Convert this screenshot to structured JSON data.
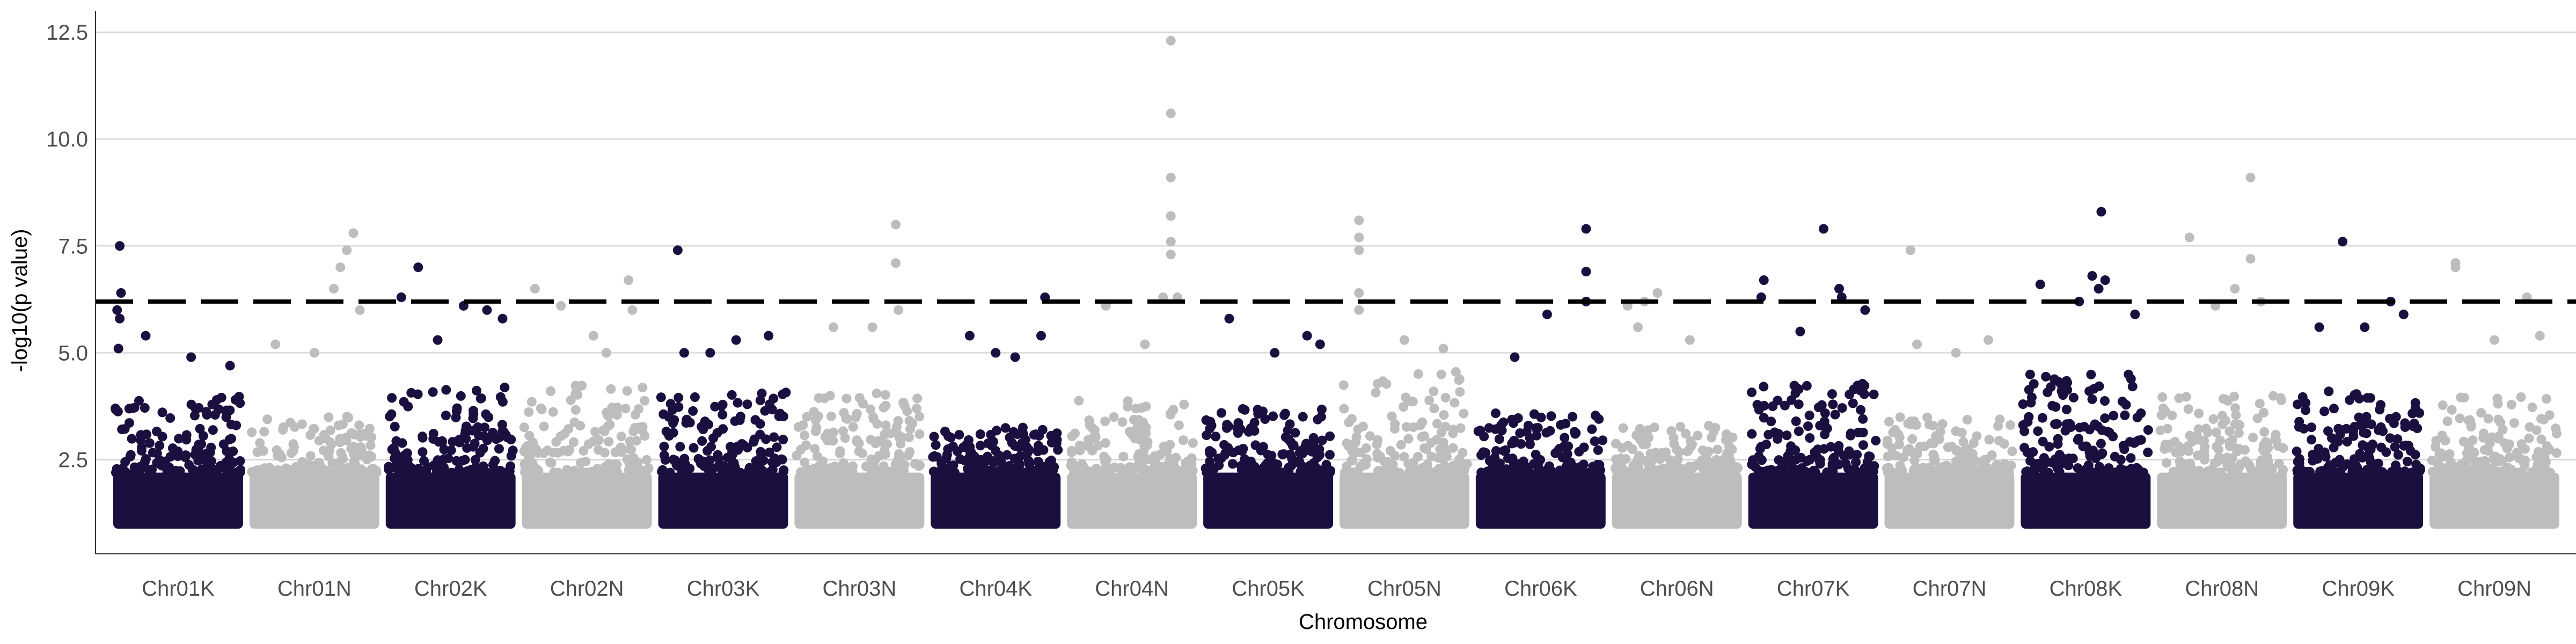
{
  "chart_data": {
    "type": "scatter",
    "title": "",
    "xlabel": "Chromosome",
    "ylabel": "-log10(p value)",
    "ylim": [
      0.3,
      13.0
    ],
    "yticks": [
      "2.5",
      "5.0",
      "7.5",
      "10.0",
      "12.5"
    ],
    "ytick_values": [
      2.5,
      5.0,
      7.5,
      10.0,
      12.5
    ],
    "grid": "horizontal",
    "threshold": 6.2,
    "colors": {
      "dark": "#1b0f40",
      "light": "#bdbdbd",
      "grid": "#cccccc",
      "threshold": "#000000"
    },
    "categories": [
      "Chr01K",
      "Chr01N",
      "Chr02K",
      "Chr02N",
      "Chr03K",
      "Chr03N",
      "Chr04K",
      "Chr04N",
      "Chr05K",
      "Chr05N",
      "Chr06K",
      "Chr06N",
      "Chr07K",
      "Chr07N",
      "Chr08K",
      "Chr08N",
      "Chr09K",
      "Chr09N"
    ],
    "series": [
      {
        "color": "dark",
        "bulk_top": 4.0,
        "outliers": [
          [
            0.05,
            7.5
          ],
          [
            0.06,
            6.4
          ],
          [
            0.03,
            6.0
          ],
          [
            0.05,
            5.8
          ],
          [
            0.04,
            5.1
          ],
          [
            0.25,
            5.4
          ],
          [
            0.6,
            4.9
          ],
          [
            0.9,
            4.7
          ]
        ]
      },
      {
        "color": "light",
        "bulk_top": 3.6,
        "outliers": [
          [
            0.8,
            7.8
          ],
          [
            0.75,
            7.4
          ],
          [
            0.7,
            7.0
          ],
          [
            0.65,
            6.5
          ],
          [
            0.85,
            6.0
          ],
          [
            0.5,
            5.0
          ],
          [
            0.2,
            5.2
          ]
        ]
      },
      {
        "color": "dark",
        "bulk_top": 4.2,
        "outliers": [
          [
            0.25,
            7.0
          ],
          [
            0.12,
            6.3
          ],
          [
            0.6,
            6.1
          ],
          [
            0.78,
            6.0
          ],
          [
            0.9,
            5.8
          ],
          [
            0.4,
            5.3
          ]
        ]
      },
      {
        "color": "light",
        "bulk_top": 4.3,
        "outliers": [
          [
            0.1,
            6.5
          ],
          [
            0.3,
            6.1
          ],
          [
            0.82,
            6.7
          ],
          [
            0.85,
            6.0
          ],
          [
            0.55,
            5.4
          ],
          [
            0.65,
            5.0
          ]
        ]
      },
      {
        "color": "dark",
        "bulk_top": 4.1,
        "outliers": [
          [
            0.15,
            7.4
          ],
          [
            0.85,
            5.4
          ],
          [
            0.6,
            5.3
          ],
          [
            0.4,
            5.0
          ],
          [
            0.2,
            5.0
          ]
        ]
      },
      {
        "color": "light",
        "bulk_top": 4.1,
        "outliers": [
          [
            0.78,
            8.0
          ],
          [
            0.78,
            7.1
          ],
          [
            0.8,
            6.0
          ],
          [
            0.3,
            5.6
          ],
          [
            0.6,
            5.6
          ]
        ]
      },
      {
        "color": "dark",
        "bulk_top": 3.3,
        "outliers": [
          [
            0.88,
            6.3
          ],
          [
            0.85,
            5.4
          ],
          [
            0.3,
            5.4
          ],
          [
            0.5,
            5.0
          ],
          [
            0.65,
            4.9
          ]
        ]
      },
      {
        "color": "light",
        "bulk_top": 3.9,
        "outliers": [
          [
            0.8,
            12.3
          ],
          [
            0.8,
            10.6
          ],
          [
            0.8,
            9.1
          ],
          [
            0.8,
            8.2
          ],
          [
            0.8,
            7.6
          ],
          [
            0.8,
            7.3
          ],
          [
            0.74,
            6.3
          ],
          [
            0.85,
            6.3
          ],
          [
            0.3,
            6.1
          ],
          [
            0.6,
            5.2
          ]
        ]
      },
      {
        "color": "dark",
        "bulk_top": 3.7,
        "outliers": [
          [
            0.2,
            5.8
          ],
          [
            0.8,
            5.4
          ],
          [
            0.55,
            5.0
          ],
          [
            0.9,
            5.2
          ]
        ]
      },
      {
        "color": "light",
        "bulk_top": 4.6,
        "outliers": [
          [
            0.15,
            8.1
          ],
          [
            0.15,
            7.7
          ],
          [
            0.15,
            7.4
          ],
          [
            0.15,
            6.4
          ],
          [
            0.15,
            6.0
          ],
          [
            0.5,
            5.3
          ],
          [
            0.8,
            5.1
          ]
        ]
      },
      {
        "color": "dark",
        "bulk_top": 3.6,
        "outliers": [
          [
            0.85,
            7.9
          ],
          [
            0.85,
            6.9
          ],
          [
            0.85,
            6.2
          ],
          [
            0.55,
            5.9
          ],
          [
            0.3,
            4.9
          ]
        ]
      },
      {
        "color": "light",
        "bulk_top": 3.3,
        "outliers": [
          [
            0.12,
            6.1
          ],
          [
            0.25,
            6.2
          ],
          [
            0.35,
            6.4
          ],
          [
            0.6,
            5.3
          ],
          [
            0.2,
            5.6
          ]
        ]
      },
      {
        "color": "dark",
        "bulk_top": 4.3,
        "outliers": [
          [
            0.12,
            6.7
          ],
          [
            0.1,
            6.3
          ],
          [
            0.7,
            6.5
          ],
          [
            0.72,
            6.3
          ],
          [
            0.58,
            7.9
          ],
          [
            0.9,
            6.0
          ],
          [
            0.4,
            5.5
          ]
        ]
      },
      {
        "color": "light",
        "bulk_top": 3.5,
        "outliers": [
          [
            0.2,
            7.4
          ],
          [
            0.25,
            5.2
          ],
          [
            0.55,
            5.0
          ],
          [
            0.8,
            5.3
          ]
        ]
      },
      {
        "color": "dark",
        "bulk_top": 4.5,
        "outliers": [
          [
            0.62,
            8.3
          ],
          [
            0.55,
            6.8
          ],
          [
            0.65,
            6.7
          ],
          [
            0.6,
            6.5
          ],
          [
            0.15,
            6.6
          ],
          [
            0.88,
            5.9
          ],
          [
            0.45,
            6.2
          ]
        ]
      },
      {
        "color": "light",
        "bulk_top": 4.0,
        "outliers": [
          [
            0.25,
            7.7
          ],
          [
            0.72,
            9.1
          ],
          [
            0.72,
            7.2
          ],
          [
            0.6,
            6.5
          ],
          [
            0.45,
            6.1
          ],
          [
            0.8,
            6.2
          ]
        ]
      },
      {
        "color": "dark",
        "bulk_top": 4.1,
        "outliers": [
          [
            0.38,
            7.6
          ],
          [
            0.75,
            6.2
          ],
          [
            0.2,
            5.6
          ],
          [
            0.55,
            5.6
          ],
          [
            0.85,
            5.9
          ]
        ]
      },
      {
        "color": "light",
        "bulk_top": 4.0,
        "outliers": [
          [
            0.2,
            7.1
          ],
          [
            0.2,
            7.0
          ],
          [
            0.75,
            6.3
          ],
          [
            0.5,
            5.3
          ],
          [
            0.85,
            5.4
          ]
        ]
      }
    ]
  }
}
